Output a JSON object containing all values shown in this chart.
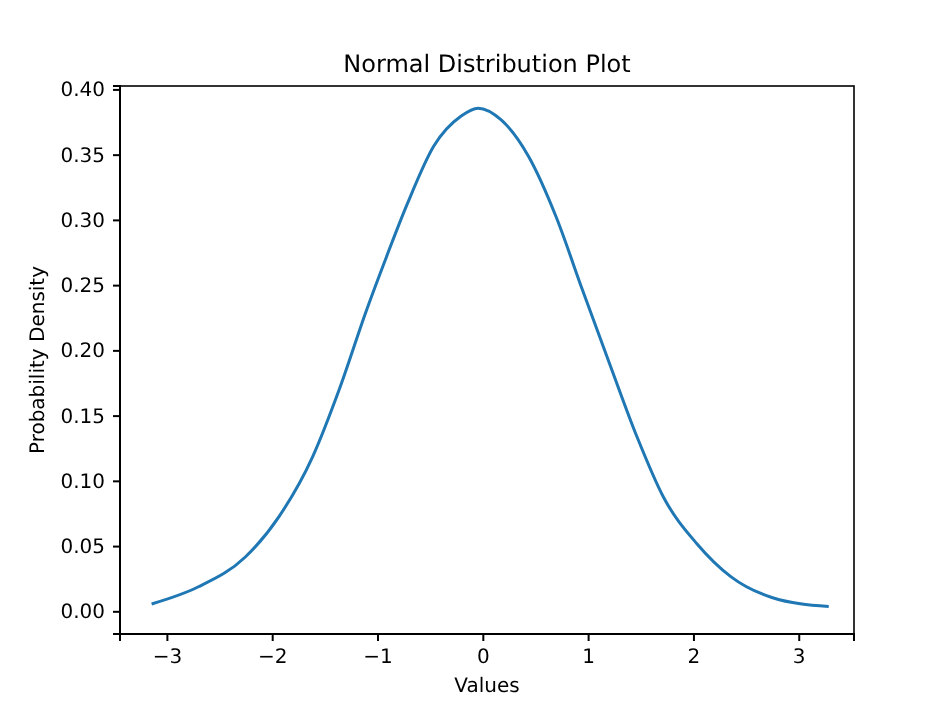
{
  "chart_data": {
    "type": "line",
    "title": "Normal Distribution Plot",
    "xlabel": "Values",
    "ylabel": "Probability Density",
    "x": [
      -3.15,
      -2.71,
      -2.26,
      -1.94,
      -1.62,
      -1.37,
      -1.11,
      -0.92,
      -0.72,
      -0.47,
      -0.21,
      -0.05,
      0.17,
      0.43,
      0.69,
      0.94,
      1.2,
      1.46,
      1.71,
      2.03,
      2.35,
      2.74,
      3.28
    ],
    "series": [
      {
        "color": "#1f77b4",
        "values": [
          0.006,
          0.019,
          0.042,
          0.073,
          0.119,
          0.17,
          0.231,
          0.272,
          0.313,
          0.357,
          0.38,
          0.386,
          0.377,
          0.349,
          0.303,
          0.247,
          0.19,
          0.134,
          0.088,
          0.052,
          0.027,
          0.011,
          0.004
        ]
      }
    ],
    "xlim": [
      -3.45,
      3.52
    ],
    "xticks": [
      {
        "value": -3,
        "label": "−3"
      },
      {
        "value": -2,
        "label": "−2"
      },
      {
        "value": -1,
        "label": "−1"
      },
      0,
      1,
      2,
      3
    ],
    "ylim": [
      -0.017,
      0.403
    ],
    "yticks": [
      {
        "value": 0,
        "label": "0.00"
      },
      {
        "value": 0.05,
        "label": "0.05"
      },
      {
        "value": 0.1,
        "label": "0.10"
      },
      {
        "value": 0.15,
        "label": "0.15"
      },
      {
        "value": 0.2,
        "label": "0.20"
      },
      {
        "value": 0.25,
        "label": "0.25"
      },
      {
        "value": 0.3,
        "label": "0.30"
      },
      {
        "value": 0.35,
        "label": "0.35"
      },
      {
        "value": 0.4,
        "label": "0.40"
      }
    ],
    "grid": false
  }
}
